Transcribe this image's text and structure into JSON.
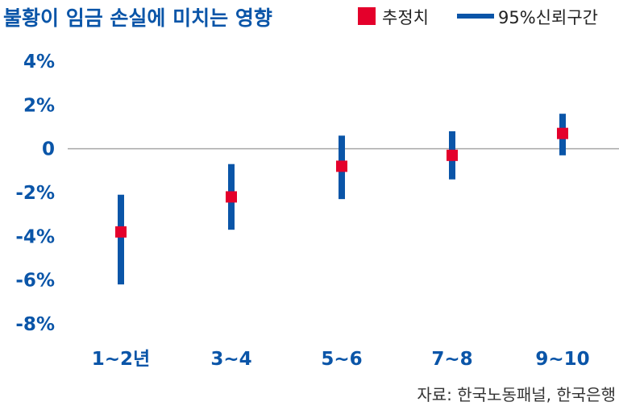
{
  "chart_data": {
    "type": "scatter",
    "title": "불황이 임금 손실에 미치는 영향",
    "categories": [
      "1~2년",
      "3~4",
      "5~6",
      "7~8",
      "9~10"
    ],
    "series": [
      {
        "name": "추정치",
        "marker": "square",
        "color": "#e4002b",
        "values": [
          -3.8,
          -2.2,
          -0.8,
          -0.3,
          0.7
        ]
      },
      {
        "name": "95%신뢰구간",
        "marker": "range",
        "color": "#0a55a8",
        "low": [
          -6.2,
          -3.7,
          -2.3,
          -1.4,
          -0.3
        ],
        "high": [
          -2.1,
          -0.7,
          0.6,
          0.8,
          1.6
        ]
      }
    ],
    "y_ticks": [
      4,
      2,
      0,
      -2,
      -4,
      -6,
      -8
    ],
    "y_tick_labels": [
      "4%",
      "2%",
      "0",
      "-2%",
      "-4%",
      "-6%",
      "-8%"
    ],
    "ylim": [
      -8,
      4
    ],
    "zero_line": true,
    "grid": false,
    "legend_position": "top-right",
    "xlabel": "",
    "ylabel": "",
    "source": "자료: 한국노동패널, 한국은행"
  }
}
